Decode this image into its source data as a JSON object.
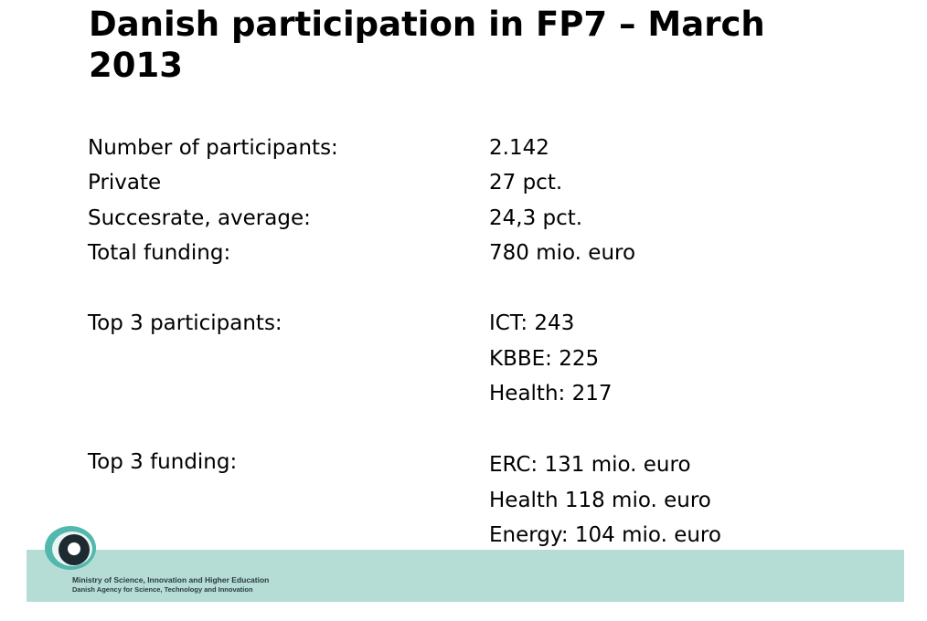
{
  "title": "Danish participation in FP7 – March 2013",
  "rows": [
    {
      "label": "Number of participants:",
      "value": "2.142"
    },
    {
      "label": "Private",
      "value": "27 pct."
    },
    {
      "label": "Succesrate, average:",
      "value": "24,3 pct."
    },
    {
      "label": "Total funding:",
      "value": "780 mio. euro"
    }
  ],
  "groups": [
    {
      "label": "Top 3 participants:",
      "items": [
        "ICT: 243",
        "KBBE: 225",
        "Health: 217"
      ]
    },
    {
      "label": "Top 3 funding:",
      "items": [
        "ERC: 131 mio. euro",
        "Health 118 mio. euro",
        "Energy: 104 mio. euro"
      ]
    }
  ],
  "footer": {
    "line1": "Ministry of Science, Innovation and Higher Education",
    "line2": "Danish Agency for Science, Technology and Innovation"
  }
}
